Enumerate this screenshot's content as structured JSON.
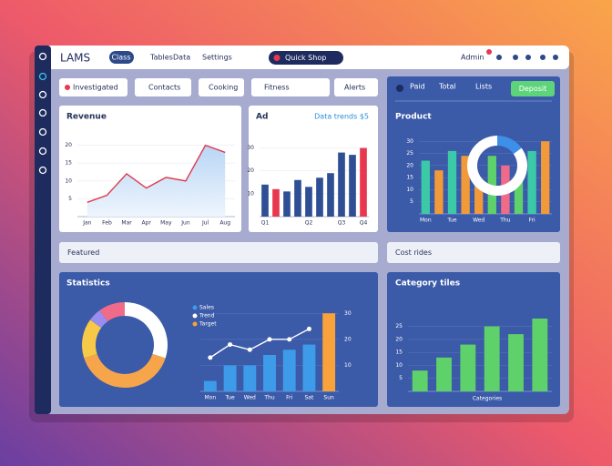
{
  "app": {
    "logo": "LAMS",
    "nav": [
      "Class",
      "Tables",
      "Data",
      "Settings"
    ],
    "search": "Quick Shop",
    "user": "Admin"
  },
  "filters": [
    "Investigated",
    "Contacts",
    "Cooking",
    "Fitness",
    "Alerts"
  ],
  "summary": {
    "labels": [
      "Paid",
      "Total",
      "Lists"
    ],
    "button": "Deposit"
  },
  "bars": {
    "featured": "Featured",
    "cost": "Cost rides"
  },
  "chart_data": [
    {
      "type": "line",
      "title": "Revenue",
      "categories": [
        "Jan",
        "Feb",
        "Mar",
        "Apr",
        "May",
        "Jun",
        "Jul",
        "Aug"
      ],
      "values": [
        4,
        6,
        12,
        8,
        11,
        10,
        20,
        18
      ],
      "color": "#e0394d",
      "ylim": [
        0,
        25
      ],
      "yticks": [
        5,
        10,
        15,
        20
      ]
    },
    {
      "type": "bar",
      "title": "Ad",
      "subtitle": "Data trends $5",
      "categories": [
        "Q1",
        null,
        null,
        null,
        "Q2",
        null,
        null,
        "Q3",
        null,
        "Q4"
      ],
      "values": [
        14,
        12,
        11,
        16,
        13,
        17,
        19,
        28,
        27,
        30
      ],
      "colors": [
        "#2f4f95",
        "#e8384f",
        "#2f4f95",
        "#2f4f95",
        "#2f4f95",
        "#2f4f95",
        "#2f4f95",
        "#2f4f95",
        "#2f4f95",
        "#e8384f"
      ],
      "ylim": [
        0,
        35
      ],
      "yticks": [
        10,
        20,
        30
      ]
    },
    {
      "type": "bar",
      "title": "Product",
      "categories": [
        "Mon",
        null,
        "Tue",
        null,
        "Wed",
        null,
        "Thu",
        null,
        "Fri",
        null
      ],
      "values": [
        22,
        18,
        26,
        24,
        12,
        24,
        20,
        14,
        26,
        30
      ],
      "colors": [
        "#3cc9a8",
        "#f29a3a",
        "#3cc9a8",
        "#f29a3a",
        "#f29a3a",
        "#5fd16a",
        "#f06b8a",
        "#5fd16a",
        "#3cc9a8",
        "#f29a3a"
      ],
      "ylim": [
        0,
        35
      ],
      "yticks": [
        5,
        10,
        15,
        20,
        25,
        30
      ]
    },
    {
      "type": "donut",
      "values": [
        15,
        85
      ],
      "colors": [
        "#3d8fe8",
        "#ffffff"
      ]
    },
    {
      "type": "donut",
      "title": "Statistics",
      "values": [
        30,
        40,
        15,
        5,
        10
      ],
      "colors": [
        "#ffffff",
        "#f7a54a",
        "#f7c948",
        "#9b8cf0",
        "#f06b8a"
      ]
    },
    {
      "type": "combo",
      "categories": [
        "Mon",
        "Tue",
        "Wed",
        "Thu",
        "Fri",
        "Sat",
        "Sun"
      ],
      "ylim": [
        0,
        35
      ],
      "yticks": [
        10,
        20,
        30
      ],
      "series": [
        {
          "name": "Sales",
          "type": "bar",
          "color": "#3d9be9",
          "values": [
            4,
            10,
            10,
            14,
            16,
            18,
            null
          ]
        },
        {
          "name": "Trend",
          "type": "line",
          "color": "#ffffff",
          "values": [
            13,
            18,
            16,
            20,
            20,
            24,
            null
          ]
        },
        {
          "name": "Target",
          "type": "bar",
          "color": "#f7a23a",
          "values": [
            null,
            null,
            null,
            null,
            null,
            null,
            30
          ]
        }
      ]
    },
    {
      "type": "bar",
      "title": "Category tiles",
      "xlabel": "Categories",
      "values": [
        8,
        13,
        18,
        25,
        22,
        28
      ],
      "color": "#5fd16a",
      "ylim": [
        0,
        35
      ],
      "yticks": [
        5,
        10,
        15,
        20,
        25
      ]
    }
  ]
}
